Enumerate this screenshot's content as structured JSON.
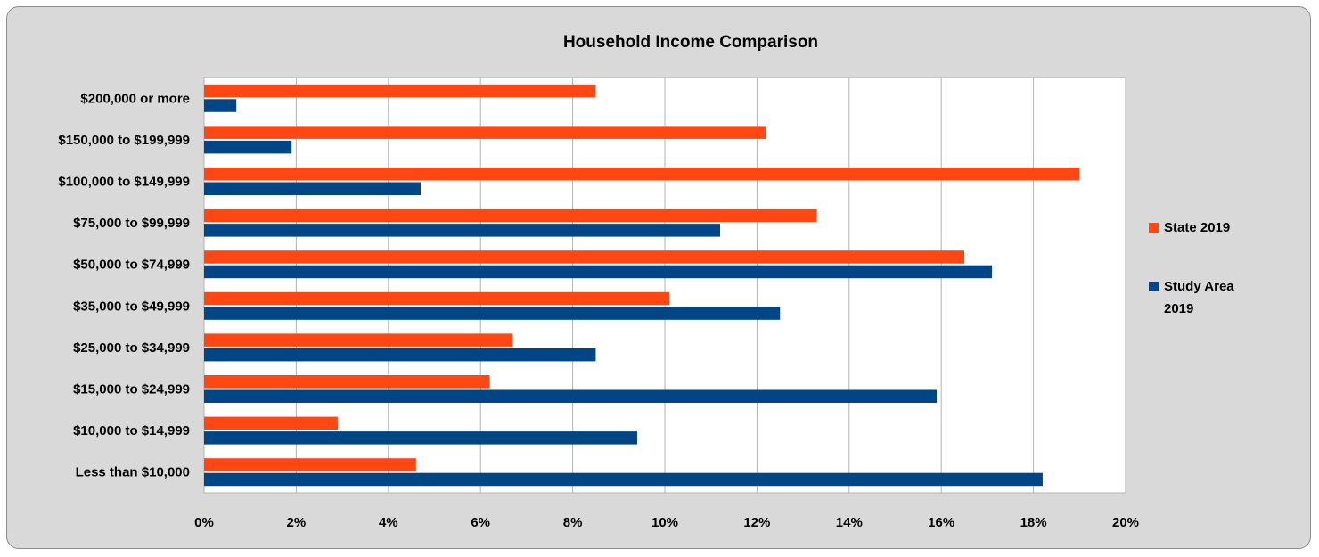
{
  "chart_data": {
    "type": "bar",
    "orientation": "horizontal",
    "title": "Household Income Comparison",
    "xlabel": "",
    "ylabel": "",
    "categories": [
      "$200,000 or more",
      "$150,000 to $199,999",
      "$100,000 to $149,999",
      "$75,000 to $99,999",
      "$50,000 to $74,999",
      "$35,000 to $49,999",
      "$25,000 to $34,999",
      "$15,000 to $24,999",
      "$10,000 to $14,999",
      "Less than $10,000"
    ],
    "series": [
      {
        "name": "State 2019",
        "color": "#ff4714",
        "values": [
          8.5,
          12.2,
          19.0,
          13.3,
          16.5,
          10.1,
          6.7,
          6.2,
          2.9,
          4.6
        ]
      },
      {
        "name": "Study Area 2019",
        "color": "#004586",
        "values": [
          0.7,
          1.9,
          4.7,
          11.2,
          17.1,
          12.5,
          8.5,
          15.9,
          9.4,
          18.2
        ]
      }
    ],
    "xlim": [
      0,
      20
    ],
    "xticks": [
      "0%",
      "2%",
      "4%",
      "6%",
      "8%",
      "10%",
      "12%",
      "14%",
      "16%",
      "18%",
      "20%"
    ],
    "grid": "vertical",
    "legend_position": "right"
  },
  "legend": {
    "state_label": "State 2019",
    "study_label_line1": "Study Area",
    "study_label_line2": "2019"
  }
}
